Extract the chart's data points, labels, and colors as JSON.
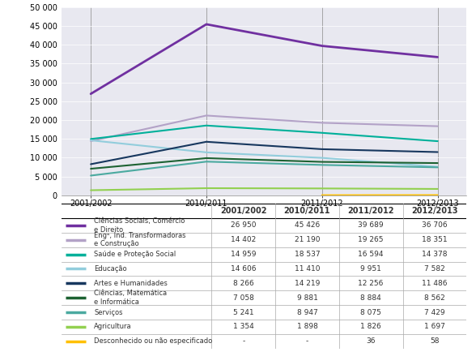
{
  "years": [
    "2001/2002",
    "2010/2011",
    "2011/2012",
    "2012/2013"
  ],
  "x_positions": [
    0,
    1,
    2,
    3
  ],
  "series": [
    {
      "label": "Ciências Sociais, Comércio e Direito",
      "color": "#7030a0",
      "linewidth": 2.0,
      "values": [
        26950,
        45426,
        39689,
        36706
      ]
    },
    {
      "label": "Engᵃ, Ind. Transformadoras e Construção",
      "color": "#b3a2c7",
      "linewidth": 1.5,
      "values": [
        14402,
        21190,
        19265,
        18351
      ]
    },
    {
      "label": "Saúde e Proteção Social",
      "color": "#00b09a",
      "linewidth": 1.5,
      "values": [
        14959,
        18537,
        16594,
        14378
      ]
    },
    {
      "label": "Educação",
      "color": "#92cddc",
      "linewidth": 1.5,
      "values": [
        14606,
        11410,
        9951,
        7582
      ]
    },
    {
      "label": "Artes e Humanidades",
      "color": "#17375e",
      "linewidth": 1.5,
      "values": [
        8266,
        14219,
        12256,
        11486
      ]
    },
    {
      "label": "Ciências, Matemática e Informática",
      "color": "#1d6232",
      "linewidth": 1.5,
      "values": [
        7058,
        9881,
        8884,
        8562
      ]
    },
    {
      "label": "Serviços",
      "color": "#4baaa0",
      "linewidth": 1.5,
      "values": [
        5241,
        8947,
        8075,
        7429
      ]
    },
    {
      "label": "Agricultura",
      "color": "#92d050",
      "linewidth": 1.5,
      "values": [
        1354,
        1898,
        1826,
        1697
      ]
    },
    {
      "label": "Desconhecido ou não especificado",
      "color": "#ffc000",
      "linewidth": 1.5,
      "values": [
        null,
        null,
        36,
        58
      ]
    }
  ],
  "ylim": [
    0,
    50000
  ],
  "yticks": [
    0,
    5000,
    10000,
    15000,
    20000,
    25000,
    30000,
    35000,
    40000,
    45000,
    50000
  ],
  "ytick_labels": [
    "0",
    "5 000",
    "10 000",
    "15 000",
    "20 000",
    "25 000",
    "30 000",
    "35 000",
    "40 000",
    "45 000",
    "50 000"
  ],
  "chart_bg": "#e8e8f0",
  "table_row_labels": [
    "Ciências Sociais, Comércio\ne Direito",
    "Engᵃ, Ind. Transformadoras\ne Construção",
    "Saúde e Proteção Social",
    "Educação",
    "Artes e Humanidades",
    "Ciências, Matemática\ne Informática",
    "Serviços",
    "Agricultura",
    "Desconhecido ou não especificado"
  ],
  "table_values": [
    [
      "26 950",
      "45 426",
      "39 689",
      "36 706"
    ],
    [
      "14 402",
      "21 190",
      "19 265",
      "18 351"
    ],
    [
      "14 959",
      "18 537",
      "16 594",
      "14 378"
    ],
    [
      "14 606",
      "11 410",
      "9 951",
      "7 582"
    ],
    [
      "8 266",
      "14 219",
      "12 256",
      "11 486"
    ],
    [
      "7 058",
      "9 881",
      "8 884",
      "8 562"
    ],
    [
      "5 241",
      "8 947",
      "8 075",
      "7 429"
    ],
    [
      "1 354",
      "1 898",
      "1 826",
      "1 697"
    ],
    [
      "-",
      "-",
      "36",
      "58"
    ]
  ],
  "legend_colors": [
    "#7030a0",
    "#b3a2c7",
    "#00b09a",
    "#92cddc",
    "#17375e",
    "#1d6232",
    "#4baaa0",
    "#92d050",
    "#ffc000"
  ]
}
